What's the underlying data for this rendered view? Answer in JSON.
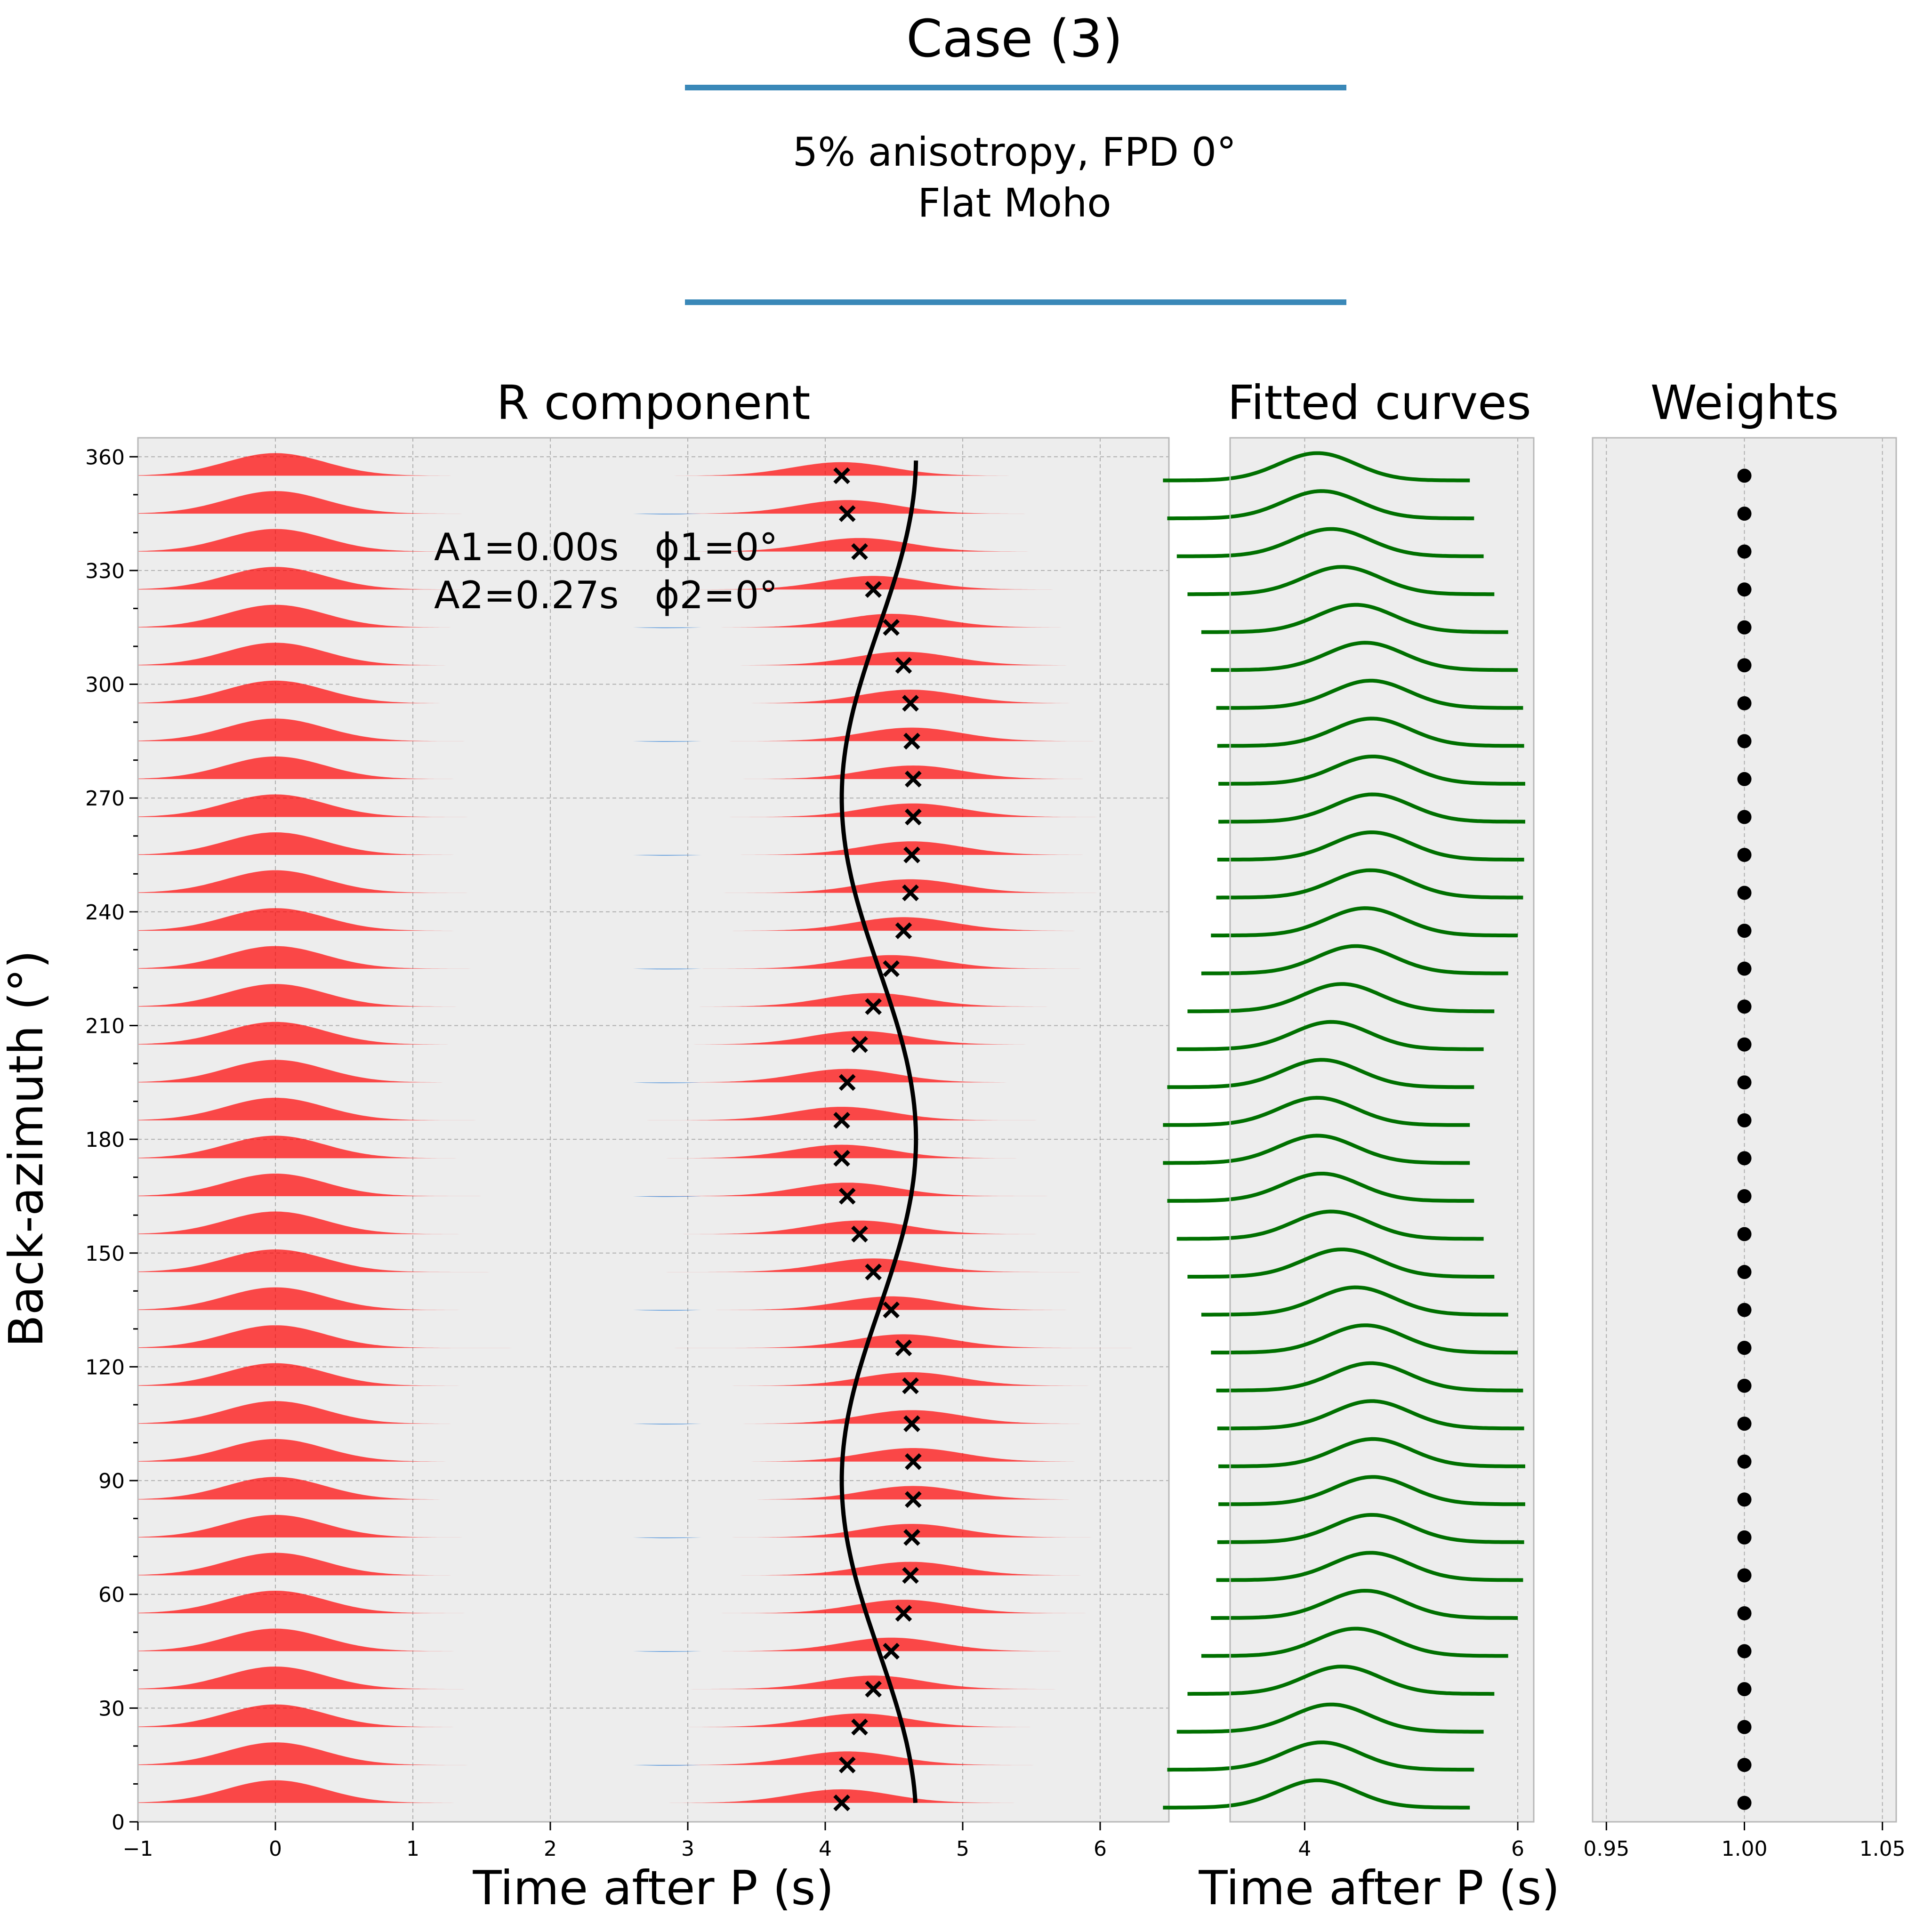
{
  "header": {
    "title": "Case (3)",
    "subtitle_line1": "5% anisotropy, FPD 0°",
    "subtitle_line2": "Flat Moho",
    "rule_color": "#3a88b8"
  },
  "colors": {
    "axes_bg": "#ededed",
    "positive_fill": "#ff0000",
    "negative_fill": "#1f77d4",
    "fitted": "#007000",
    "marker": "#000000"
  },
  "chart_data": [
    {
      "type": "area",
      "title": "R component",
      "xlabel": "Time after P (s)",
      "ylabel": "Back-azimuth (°)",
      "xlim": [
        -1,
        6.5
      ],
      "ylim": [
        0,
        365
      ],
      "xticks": [
        -1,
        0,
        1,
        2,
        3,
        4,
        5,
        6
      ],
      "xtick_labels": [
        "−1",
        "0",
        "1",
        "2",
        "3",
        "4",
        "5",
        "6"
      ],
      "yticks": [
        0,
        30,
        60,
        90,
        120,
        150,
        180,
        210,
        240,
        270,
        300,
        330,
        360
      ],
      "grid": true,
      "annotation_line1": "A1=0.00s   ϕ1=0°",
      "annotation_line2": "A2=0.27s   ϕ2=0°",
      "trace_spacing_deg": 10,
      "back_azimuth": [
        5,
        15,
        25,
        35,
        45,
        55,
        65,
        75,
        85,
        95,
        105,
        115,
        125,
        135,
        145,
        155,
        165,
        175,
        185,
        195,
        205,
        215,
        225,
        235,
        245,
        255,
        265,
        275,
        285,
        295,
        305,
        315,
        325,
        335,
        345,
        355
      ],
      "picked_delay_s": [
        4.12,
        4.16,
        4.25,
        4.35,
        4.48,
        4.57,
        4.62,
        4.63,
        4.64,
        4.64,
        4.63,
        4.62,
        4.57,
        4.48,
        4.35,
        4.25,
        4.16,
        4.12,
        4.12,
        4.16,
        4.25,
        4.35,
        4.48,
        4.57,
        4.62,
        4.63,
        4.64,
        4.64,
        4.63,
        4.62,
        4.57,
        4.48,
        4.35,
        4.25,
        4.16,
        4.12
      ],
      "fit_model": {
        "t0_s": 4.39,
        "A2_s": 0.27,
        "phi2_deg": 0
      },
      "direct_arrival_s": 0
    },
    {
      "type": "line",
      "title": "Fitted curves",
      "xlabel": "Time after P (s)",
      "xlim": [
        3.3,
        6.15
      ],
      "xticks": [
        4,
        6
      ],
      "xtick_labels": [
        "4",
        "6"
      ],
      "ylim": [
        0,
        365
      ],
      "grid": true
    },
    {
      "type": "scatter",
      "title": "Weights",
      "xlim": [
        0.945,
        1.055
      ],
      "xticks": [
        0.95,
        1.0,
        1.05
      ],
      "xtick_labels": [
        "0.95",
        "1.00",
        "1.05"
      ],
      "ylim": [
        0,
        365
      ],
      "weight_value": 1.0,
      "grid": true
    }
  ]
}
